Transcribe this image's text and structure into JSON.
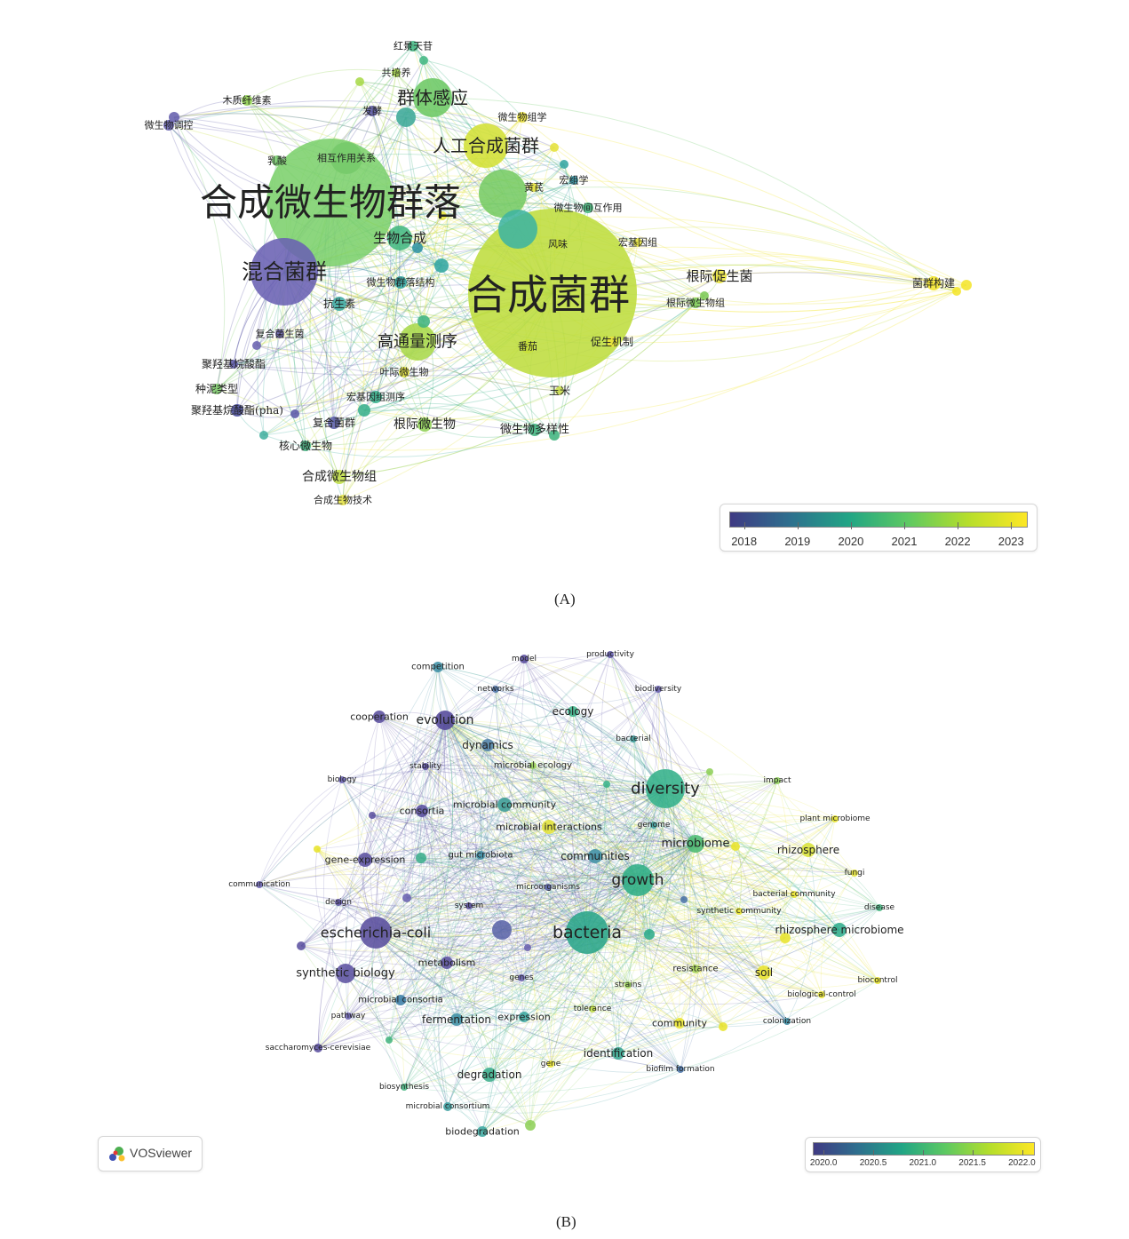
{
  "panel_a": {
    "caption": "(A)",
    "legend": {
      "ticks": [
        "2018",
        "2019",
        "2020",
        "2021",
        "2022",
        "2023"
      ],
      "colors": [
        "#3f3a83",
        "#2e6f8e",
        "#21a585",
        "#5ec962",
        "#b5de2b",
        "#fde725"
      ]
    },
    "nodes": [
      {
        "label": "合成微生物群落",
        "color": "#7cd06c",
        "size": "xl"
      },
      {
        "label": "合成菌群",
        "color": "#bedd3d",
        "size": "xl"
      },
      {
        "label": "混合菌群",
        "color": "#6a61b3",
        "size": "l"
      },
      {
        "label": "群体感应",
        "color": "#6cc864",
        "size": "m"
      },
      {
        "label": "人工合成菌群",
        "color": "#d3e035",
        "size": "m"
      },
      {
        "label": "高通量测序",
        "color": "#a9d84a",
        "size": "m"
      },
      {
        "label": "生物合成",
        "color": "#44b882",
        "size": "s"
      },
      {
        "label": "根际促生菌",
        "color": "#e8e33a",
        "size": "s"
      },
      {
        "label": "根际微生物",
        "color": "#8ecf54",
        "size": "s"
      },
      {
        "label": "微生物多样性",
        "color": "#41b47f",
        "size": "s"
      },
      {
        "label": "合成微生物组",
        "color": "#bfdd45",
        "size": "s"
      },
      {
        "label": "合成生物技术",
        "color": "#e5e244",
        "size": "xs"
      },
      {
        "label": "核心微生物",
        "color": "#41b47f",
        "size": "xs"
      },
      {
        "label": "复合菌群",
        "color": "#5c5ea8",
        "size": "xs"
      },
      {
        "label": "聚羟基烷酸酯(pha)",
        "color": "#4a4d9e",
        "size": "xs"
      },
      {
        "label": "种泥类型",
        "color": "#7cc86a",
        "size": "xs"
      },
      {
        "label": "聚羟基烷酸酯",
        "color": "#5d5aa8",
        "size": "xs"
      },
      {
        "label": "复合菌生菌",
        "color": "#6a63b1",
        "size": "xs"
      },
      {
        "label": "抗生素",
        "color": "#3ea8a0",
        "size": "xs"
      },
      {
        "label": "微生物群落结构",
        "color": "#30a39f",
        "size": "xs"
      },
      {
        "label": "宏基因组测序",
        "color": "#35b08c",
        "size": "xs"
      },
      {
        "label": "叶际微生物",
        "color": "#e1e23a",
        "size": "xs"
      },
      {
        "label": "番茄",
        "color": "#c7df3a",
        "size": "xs"
      },
      {
        "label": "促生机制",
        "color": "#e9e33a",
        "size": "xs"
      },
      {
        "label": "玉米",
        "color": "#c8dd4a",
        "size": "xs"
      },
      {
        "label": "根际微生物组",
        "color": "#7dc957",
        "size": "xs"
      },
      {
        "label": "菌群构建",
        "color": "#f4e52c",
        "size": "xs"
      },
      {
        "label": "宏基因组",
        "color": "#e6e33a",
        "size": "xs"
      },
      {
        "label": "风味",
        "color": "#c7df3a",
        "size": "xs"
      },
      {
        "label": "微生物间互作用",
        "color": "#44b87c",
        "size": "xs"
      },
      {
        "label": "宏组学",
        "color": "#2f92a3",
        "size": "xs"
      },
      {
        "label": "黄芪",
        "color": "#e5e13a",
        "size": "xs"
      },
      {
        "label": "微生物组学",
        "color": "#eae33a",
        "size": "xs"
      },
      {
        "label": "相互作用关系",
        "color": "#75c96a",
        "size": "xs"
      },
      {
        "label": "乳酸",
        "color": "#74c86b",
        "size": "xs"
      },
      {
        "label": "发酵",
        "color": "#5c5aa5",
        "size": "xs"
      },
      {
        "label": "共培养",
        "color": "#a8d94a",
        "size": "xs"
      },
      {
        "label": "红景天苷",
        "color": "#44b884",
        "size": "xs"
      },
      {
        "label": "木质纤维素",
        "color": "#8fcf4f",
        "size": "xs"
      },
      {
        "label": "微生物调控",
        "color": "#6560ad",
        "size": "xs"
      }
    ]
  },
  "panel_b": {
    "caption": "(B)",
    "legend": {
      "ticks": [
        "2020.0",
        "2020.5",
        "2021.0",
        "2021.5",
        "2022.0"
      ],
      "colors": [
        "#3f3a83",
        "#2e6f8e",
        "#21a585",
        "#5ec962",
        "#b5de2b",
        "#fde725"
      ]
    },
    "watermark": "VOSviewer",
    "nodes": [
      {
        "label": "bacteria",
        "color": "#2aa58a",
        "size": "l"
      },
      {
        "label": "diversity",
        "color": "#33b08a",
        "size": "l"
      },
      {
        "label": "growth",
        "color": "#2fae85",
        "size": "m"
      },
      {
        "label": "escherichia-coli",
        "color": "#5a4f9e",
        "size": "m"
      },
      {
        "label": "evolution",
        "color": "#53489a",
        "size": "s"
      },
      {
        "label": "microbiome",
        "color": "#4bbb73",
        "size": "s"
      },
      {
        "label": "rhizosphere",
        "color": "#d9e33a",
        "size": "s"
      },
      {
        "label": "synthetic biology",
        "color": "#5c52a1",
        "size": "s"
      },
      {
        "label": "communities",
        "color": "#3f8fa5",
        "size": "s"
      },
      {
        "label": "microbial community",
        "color": "#3c9d96",
        "size": "s"
      },
      {
        "label": "rhizosphere microbiome",
        "color": "#2fac8c",
        "size": "s"
      },
      {
        "label": "soil",
        "color": "#e8e42e",
        "size": "s"
      },
      {
        "label": "degradation",
        "color": "#3cae8c",
        "size": "s"
      },
      {
        "label": "identification",
        "color": "#35a48e",
        "size": "s"
      },
      {
        "label": "dynamics",
        "color": "#4e7fa7",
        "size": "s"
      },
      {
        "label": "ecology",
        "color": "#3cb48a",
        "size": "xs"
      },
      {
        "label": "cooperation",
        "color": "#5a4f9e",
        "size": "xs"
      },
      {
        "label": "competition",
        "color": "#3f8fa5",
        "size": "xs"
      },
      {
        "label": "model",
        "color": "#5a4f9e",
        "size": "xs"
      },
      {
        "label": "productivity",
        "color": "#5e57a8",
        "size": "xs"
      },
      {
        "label": "biodiversity",
        "color": "#6a62b0",
        "size": "xs"
      },
      {
        "label": "networks",
        "color": "#4c74a8",
        "size": "xs"
      },
      {
        "label": "bacterial",
        "color": "#3d9b9a",
        "size": "xs"
      },
      {
        "label": "stability",
        "color": "#5a4f9e",
        "size": "xs"
      },
      {
        "label": "microbial ecology",
        "color": "#9bd35a",
        "size": "xs"
      },
      {
        "label": "biology",
        "color": "#6a62b0",
        "size": "xs"
      },
      {
        "label": "impact",
        "color": "#8fd05a",
        "size": "xs"
      },
      {
        "label": "consortia",
        "color": "#5a4f9e",
        "size": "xs"
      },
      {
        "label": "microbial interactions",
        "color": "#e3e33a",
        "size": "xs"
      },
      {
        "label": "genome",
        "color": "#3d9b9a",
        "size": "xs"
      },
      {
        "label": "plant microbiome",
        "color": "#e8e42e",
        "size": "xs"
      },
      {
        "label": "gut microbiota",
        "color": "#3c8ca3",
        "size": "xs"
      },
      {
        "label": "gene-expression",
        "color": "#5c52a1",
        "size": "xs"
      },
      {
        "label": "fungi",
        "color": "#e2e23a",
        "size": "xs"
      },
      {
        "label": "communication",
        "color": "#6a62b0",
        "size": "xs"
      },
      {
        "label": "microorganisms",
        "color": "#5b64a8",
        "size": "xs"
      },
      {
        "label": "bacterial community",
        "color": "#e8e42e",
        "size": "xs"
      },
      {
        "label": "design",
        "color": "#5c52a1",
        "size": "xs"
      },
      {
        "label": "system",
        "color": "#5a4f9e",
        "size": "xs"
      },
      {
        "label": "synthetic community",
        "color": "#e8e42e",
        "size": "xs"
      },
      {
        "label": "disease",
        "color": "#46b480",
        "size": "xs"
      },
      {
        "label": "metabolism",
        "color": "#5c52a1",
        "size": "xs"
      },
      {
        "label": "genes",
        "color": "#6a62b0",
        "size": "xs"
      },
      {
        "label": "resistance",
        "color": "#a8d65a",
        "size": "xs"
      },
      {
        "label": "biocontrol",
        "color": "#e8e42e",
        "size": "xs"
      },
      {
        "label": "strains",
        "color": "#9bd35a",
        "size": "xs"
      },
      {
        "label": "biological-control",
        "color": "#e8e42e",
        "size": "xs"
      },
      {
        "label": "microbial consortia",
        "color": "#3e7fa8",
        "size": "xs"
      },
      {
        "label": "pathway",
        "color": "#6a62b0",
        "size": "xs"
      },
      {
        "label": "tolerance",
        "color": "#bfdd45",
        "size": "xs"
      },
      {
        "label": "fermentation",
        "color": "#3f8fa5",
        "size": "xs"
      },
      {
        "label": "expression",
        "color": "#3ea8a0",
        "size": "xs"
      },
      {
        "label": "community",
        "color": "#e8e42e",
        "size": "xs"
      },
      {
        "label": "colonization",
        "color": "#3c8ca3",
        "size": "xs"
      },
      {
        "label": "saccharomyces-cerevisiae",
        "color": "#5a4f9e",
        "size": "xs"
      },
      {
        "label": "gene",
        "color": "#e8e42e",
        "size": "xs"
      },
      {
        "label": "biofilm formation",
        "color": "#4c74a8",
        "size": "xs"
      },
      {
        "label": "biosynthesis",
        "color": "#46b480",
        "size": "xs"
      },
      {
        "label": "microbial consortium",
        "color": "#3e9fa0",
        "size": "xs"
      },
      {
        "label": "biodegradation",
        "color": "#3ea8a0",
        "size": "xs"
      }
    ]
  }
}
